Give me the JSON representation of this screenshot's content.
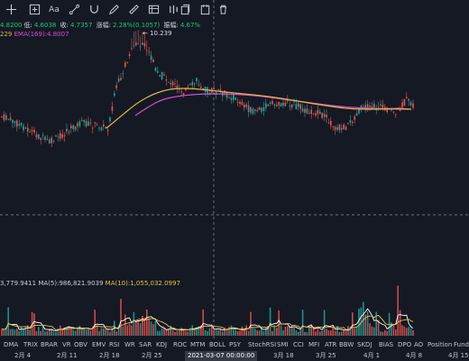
{
  "toolbar": {
    "icons": [
      "crosshair-icon",
      "undo-icon",
      "add-indicator-icon",
      "text-icon",
      "line-icon",
      "magnet-icon",
      "ruler-icon",
      "table-icon",
      "bar-pattern-icon",
      "copy-icon",
      "screenshot-icon",
      "delete-icon"
    ],
    "text_tool_label": "Aa"
  },
  "ohlc": {
    "open_value": "4.8200",
    "low_label": "低:",
    "low_value": "4.6038",
    "close_label": "收:",
    "close_value": "4.7357",
    "change_label": "涨幅:",
    "change_value": "2.28%(0.1057)",
    "amplitude_label": "振幅:",
    "amplitude_value": "4.67%"
  },
  "ema": {
    "ema_short_value": "229",
    "ema_long_label": "EMA(169):",
    "ema_long_value": "4.8007"
  },
  "volume": {
    "vol_value": "3,779.9411",
    "ma5_label": "MA(5):",
    "ma5_value": "986,821.9039",
    "ma10_label": "MA(10):",
    "ma10_value": "1,055,032.0997"
  },
  "max_marker": "← 10.239",
  "indicator_tabs": [
    "DMA",
    "TRIX",
    "BRAR",
    "VR",
    "OBV",
    "EMV",
    "RSI",
    "WR",
    "SAR",
    "KDJ",
    "ROC",
    "MTM",
    "BOLL",
    "PSY",
    "StochRSI",
    "SMI",
    "CCI",
    "MFI",
    "ATR",
    "BBW",
    "SKDJ",
    "BIAS",
    "DPO",
    "AO",
    "Position",
    "Fund"
  ],
  "date_axis": {
    "labels": [
      "2月 4",
      "2月 11",
      "2月 18",
      "2月 25",
      "3月 18",
      "3月 25",
      "4月 1",
      "4月 8",
      "4月 15"
    ],
    "cursor": "2021-03-07 00:00:00"
  },
  "colors": {
    "background": "#151924",
    "up": "#26a69a",
    "down": "#ef5350",
    "ema_short": "#e3b341",
    "ema_long": "#d64fd0"
  }
}
